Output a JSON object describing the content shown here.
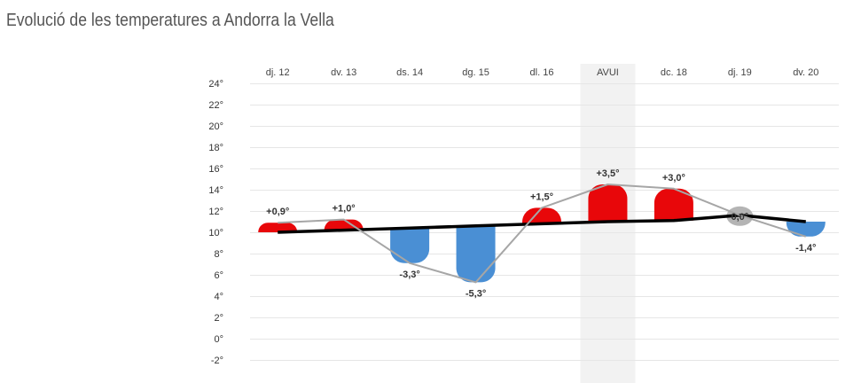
{
  "title": "Evolució de les temperatures a Andorra la Vella",
  "colors": {
    "positive": "#e8070a",
    "negative": "#4a8fd4",
    "zero": "#b4b4b4",
    "mean_line": "#000000",
    "trend_line": "#a6a6a6",
    "today_bg": "#f2f2f2",
    "grid": "#e6e6e6"
  },
  "chart_data": {
    "type": "bar",
    "categories": [
      "dj. 12",
      "dv. 13",
      "ds. 14",
      "dg. 15",
      "dl. 16",
      "AVUI",
      "dc. 18",
      "dj. 19",
      "dv. 20"
    ],
    "highlight_category": "AVUI",
    "ylim": [
      -2,
      24
    ],
    "yticks": [
      "24°",
      "22°",
      "20°",
      "18°",
      "16°",
      "14°",
      "12°",
      "10°",
      "8°",
      "6°",
      "4°",
      "2°",
      "0°",
      "-2°"
    ],
    "ytick_values": [
      24,
      22,
      20,
      18,
      16,
      14,
      12,
      10,
      8,
      6,
      4,
      2,
      0,
      -2
    ],
    "series": [
      {
        "role": "mean",
        "values": [
          10.0,
          10.2,
          10.4,
          10.6,
          10.8,
          11.0,
          11.1,
          11.6,
          11.0
        ]
      },
      {
        "role": "observed",
        "values": [
          10.9,
          11.2,
          7.1,
          5.3,
          12.3,
          14.5,
          14.1,
          11.6,
          9.6
        ]
      }
    ],
    "anomalies": [
      0.9,
      1.0,
      -3.3,
      -5.3,
      1.5,
      3.5,
      3.0,
      0.0,
      -1.4
    ],
    "anomaly_labels": [
      "+0,9°",
      "+1,0°",
      "-3,3°",
      "-5,3°",
      "+1,5°",
      "+3,5°",
      "+3,0°",
      "0,0°",
      "-1,4°"
    ],
    "grid": true,
    "legend": "none"
  }
}
